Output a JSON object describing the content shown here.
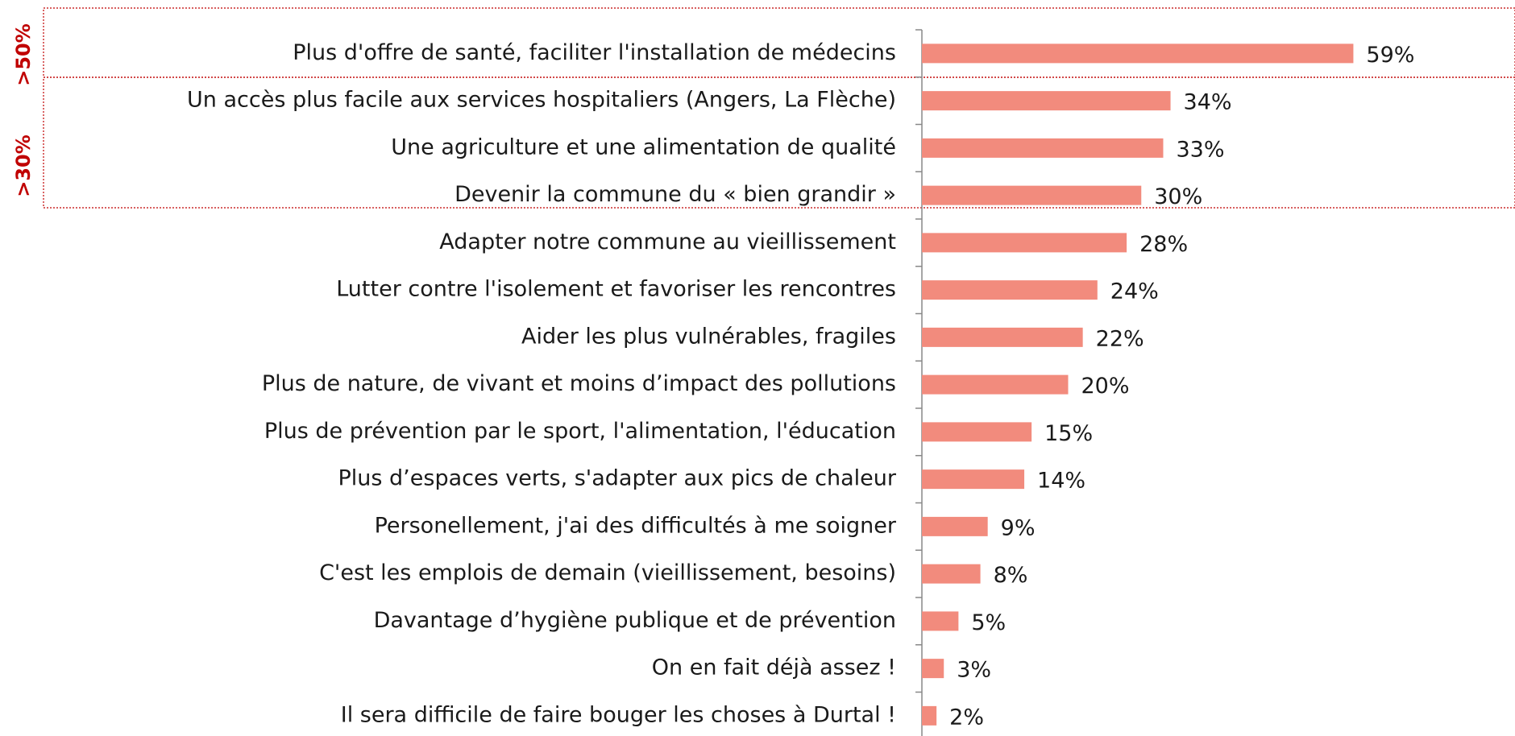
{
  "chart_data": {
    "type": "bar",
    "orientation": "horizontal",
    "categories": [
      "Plus d'offre de santé, faciliter l'installation de médecins",
      "Un accès plus facile aux services hospitaliers (Angers, La Flèche)",
      "Une agriculture et une alimentation de qualité",
      "Devenir la commune du « bien grandir »",
      "Adapter notre commune au vieillissement",
      "Lutter contre l'isolement et favoriser les rencontres",
      "Aider les plus vulnérables, fragiles",
      "Plus de nature, de vivant et moins d’impact des pollutions",
      "Plus de prévention par le sport, l'alimentation, l'éducation",
      "Plus d’espaces verts, s'adapter aux pics de chaleur",
      "Personellement, j'ai des difficultés à me soigner",
      "C'est les emplois de demain (vieillissement,  besoins)",
      "Davantage d’hygiène publique et de prévention",
      "On en fait déjà assez !",
      "Il sera difficile de faire bouger les choses à Durtal !"
    ],
    "values": [
      59,
      34,
      33,
      30,
      28,
      24,
      22,
      20,
      15,
      14,
      9,
      8,
      5,
      3,
      2
    ],
    "value_labels": [
      "59%",
      "34%",
      "33%",
      "30%",
      "28%",
      "24%",
      "22%",
      "20%",
      "15%",
      "14%",
      "9%",
      "8%",
      "5%",
      "3%",
      "2%"
    ],
    "color": "#f28b7d",
    "xlim": [
      0,
      80
    ],
    "annotations": [
      ">50%",
      ">30%"
    ]
  }
}
